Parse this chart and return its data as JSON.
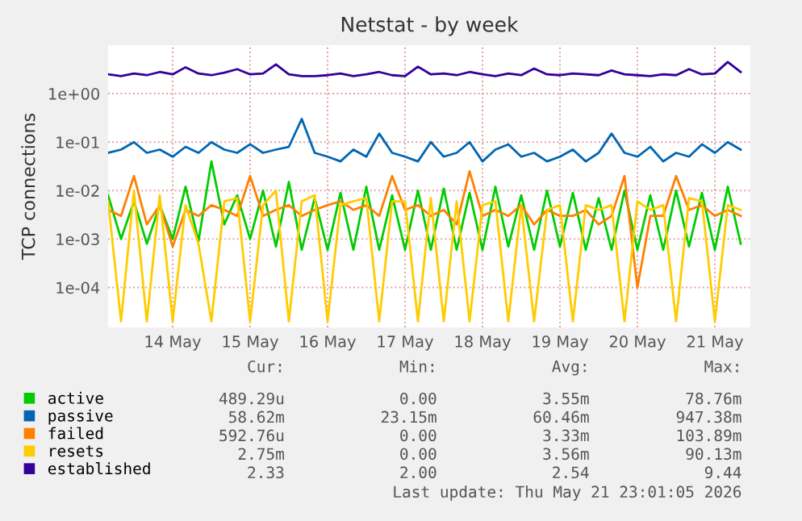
{
  "chart_data": {
    "type": "line",
    "title": "Netstat - by week",
    "ylabel": "TCP connections",
    "log": "y",
    "grid": true,
    "legend": "bottom left",
    "line_style": "solid",
    "marker": "none",
    "x": [
      "2026-05-13T16:00",
      "2026-05-13T20:00",
      "2026-05-14T00:00",
      "2026-05-14T04:00",
      "2026-05-14T08:00",
      "2026-05-14T12:00",
      "2026-05-14T16:00",
      "2026-05-14T20:00",
      "2026-05-15T00:00",
      "2026-05-15T04:00",
      "2026-05-15T08:00",
      "2026-05-15T12:00",
      "2026-05-15T16:00",
      "2026-05-15T20:00",
      "2026-05-16T00:00",
      "2026-05-16T04:00",
      "2026-05-16T08:00",
      "2026-05-16T12:00",
      "2026-05-16T16:00",
      "2026-05-16T20:00",
      "2026-05-17T00:00",
      "2026-05-17T04:00",
      "2026-05-17T08:00",
      "2026-05-17T12:00",
      "2026-05-17T16:00",
      "2026-05-17T20:00",
      "2026-05-18T00:00",
      "2026-05-18T04:00",
      "2026-05-18T08:00",
      "2026-05-18T12:00",
      "2026-05-18T16:00",
      "2026-05-18T20:00",
      "2026-05-19T00:00",
      "2026-05-19T04:00",
      "2026-05-19T08:00",
      "2026-05-19T12:00",
      "2026-05-19T16:00",
      "2026-05-19T20:00",
      "2026-05-20T00:00",
      "2026-05-20T04:00",
      "2026-05-20T08:00",
      "2026-05-20T12:00",
      "2026-05-20T16:00",
      "2026-05-20T20:00",
      "2026-05-21T00:00",
      "2026-05-21T04:00",
      "2026-05-21T08:00",
      "2026-05-21T12:00",
      "2026-05-21T16:00",
      "2026-05-21T20:00"
    ],
    "series": [
      {
        "name": "active",
        "color": "#00cc00",
        "values": [
          0.008,
          0.001,
          0.006,
          0.0008,
          0.005,
          0.001,
          0.012,
          0.0009,
          0.04,
          0.002,
          0.008,
          0.001,
          0.01,
          0.0007,
          0.015,
          0.0006,
          0.007,
          0.0006,
          0.009,
          0.0006,
          0.012,
          0.0006,
          0.008,
          0.0006,
          0.01,
          0.0006,
          0.011,
          0.0006,
          0.009,
          0.0006,
          0.012,
          0.0007,
          0.008,
          0.0006,
          0.01,
          0.0007,
          0.009,
          0.0006,
          0.007,
          0.0006,
          0.01,
          0.0006,
          0.008,
          0.0006,
          0.01,
          0.0007,
          0.009,
          0.0006,
          0.012,
          0.0008
        ]
      },
      {
        "name": "passive",
        "color": "#0066b3",
        "values": [
          0.06,
          0.07,
          0.1,
          0.06,
          0.07,
          0.05,
          0.08,
          0.06,
          0.1,
          0.07,
          0.06,
          0.09,
          0.06,
          0.07,
          0.08,
          0.3,
          0.06,
          0.05,
          0.04,
          0.07,
          0.05,
          0.15,
          0.06,
          0.05,
          0.04,
          0.1,
          0.05,
          0.06,
          0.1,
          0.04,
          0.07,
          0.09,
          0.05,
          0.06,
          0.04,
          0.05,
          0.07,
          0.04,
          0.06,
          0.15,
          0.06,
          0.05,
          0.08,
          0.04,
          0.06,
          0.05,
          0.09,
          0.06,
          0.1,
          0.07
        ]
      },
      {
        "name": "failed",
        "color": "#ff8000",
        "values": [
          0.004,
          0.003,
          0.02,
          0.002,
          0.005,
          0.0007,
          0.004,
          0.003,
          0.005,
          0.004,
          0.003,
          0.02,
          0.003,
          0.004,
          0.005,
          0.003,
          0.004,
          0.005,
          0.006,
          0.004,
          0.005,
          0.003,
          0.02,
          0.004,
          0.005,
          0.003,
          0.004,
          0.002,
          0.025,
          0.003,
          0.004,
          0.003,
          0.005,
          0.002,
          0.004,
          0.003,
          0.003,
          0.004,
          0.002,
          0.003,
          0.02,
          0.0001,
          0.003,
          0.003,
          0.02,
          0.004,
          0.005,
          0.003,
          0.004,
          0.003
        ]
      },
      {
        "name": "resets",
        "color": "#ffcc00",
        "values": [
          0.006,
          2e-05,
          0.01,
          2e-05,
          0.008,
          2e-05,
          0.005,
          0.0008,
          2e-05,
          0.006,
          0.007,
          2e-05,
          0.005,
          0.01,
          2e-05,
          0.006,
          0.008,
          2e-05,
          0.005,
          0.006,
          0.007,
          2e-05,
          0.006,
          0.006,
          2e-05,
          0.007,
          2e-05,
          0.006,
          2e-05,
          0.005,
          0.006,
          2e-05,
          0.005,
          2e-05,
          0.004,
          0.005,
          2e-05,
          0.005,
          0.004,
          0.005,
          2e-05,
          0.006,
          0.004,
          0.005,
          2e-05,
          0.007,
          0.006,
          2e-05,
          0.005,
          0.004
        ]
      },
      {
        "name": "established",
        "color": "#330099",
        "values": [
          2.5,
          2.3,
          2.6,
          2.4,
          2.8,
          2.5,
          3.5,
          2.6,
          2.4,
          2.7,
          3.2,
          2.5,
          2.6,
          4.0,
          2.5,
          2.3,
          2.3,
          2.4,
          2.6,
          2.3,
          2.5,
          2.8,
          2.4,
          2.3,
          3.6,
          2.5,
          2.6,
          2.4,
          2.8,
          2.5,
          2.3,
          2.6,
          2.4,
          3.3,
          2.5,
          2.4,
          2.6,
          2.5,
          2.4,
          3.0,
          2.5,
          2.4,
          2.3,
          2.5,
          2.4,
          3.2,
          2.5,
          2.6,
          4.5,
          2.8
        ]
      }
    ],
    "ylim": [
      1.5e-05,
      10
    ],
    "yticks": [
      {
        "value": 0.0001,
        "label": "1e-04"
      },
      {
        "value": 0.001,
        "label": "1e-03"
      },
      {
        "value": 0.01,
        "label": "1e-02"
      },
      {
        "value": 0.1,
        "label": "1e-01"
      },
      {
        "value": 1,
        "label": "1e+00"
      }
    ],
    "xlim": [
      "2026-05-13T16:00",
      "2026-05-21T23:00"
    ],
    "xticks": [
      {
        "value": "2026-05-14T12:00",
        "label": "14 May"
      },
      {
        "value": "2026-05-15T12:00",
        "label": "15 May"
      },
      {
        "value": "2026-05-16T12:00",
        "label": "16 May"
      },
      {
        "value": "2026-05-17T12:00",
        "label": "17 May"
      },
      {
        "value": "2026-05-18T12:00",
        "label": "18 May"
      },
      {
        "value": "2026-05-19T12:00",
        "label": "19 May"
      },
      {
        "value": "2026-05-20T12:00",
        "label": "20 May"
      },
      {
        "value": "2026-05-21T12:00",
        "label": "21 May"
      }
    ],
    "annotations": [
      "Cur:",
      "Min:",
      "Avg:",
      "Max:",
      "489.29u",
      "0.00",
      "3.55m",
      "78.76m",
      "58.62m",
      "23.15m",
      "60.46m",
      "947.38m",
      "592.76u",
      "0.00",
      "3.33m",
      "103.89m",
      "2.75m",
      "0.00",
      "3.56m",
      "90.13m",
      "2.33",
      "2.00",
      "2.54",
      "9.44",
      "Last update: Thu May 21 23:01:05 2026"
    ]
  }
}
